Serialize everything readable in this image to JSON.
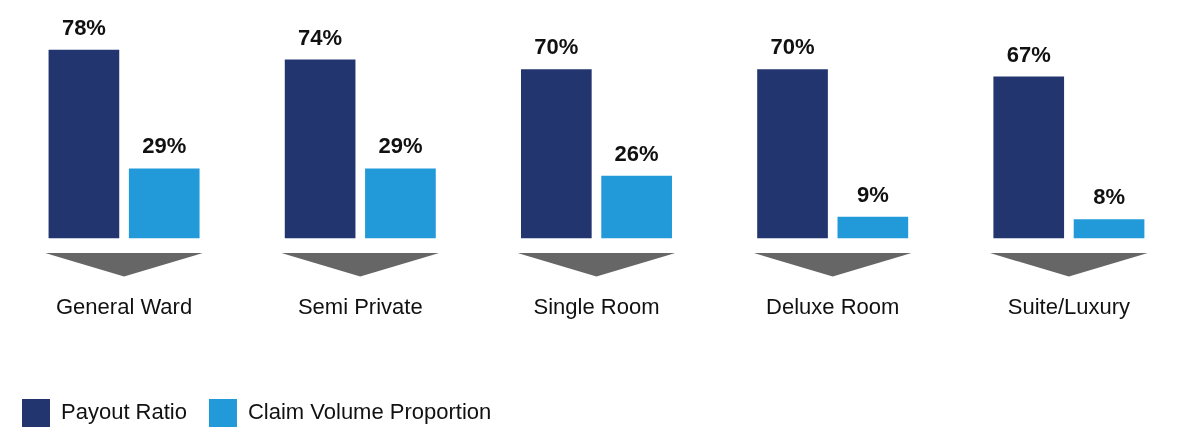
{
  "chart_data": {
    "type": "bar",
    "categories": [
      "General Ward",
      "Semi Private",
      "Single Room",
      "Deluxe Room",
      "Suite/Luxury"
    ],
    "series": [
      {
        "name": "Payout Ratio",
        "color": "#22356f",
        "values": [
          78,
          74,
          70,
          70,
          67
        ],
        "value_labels": [
          "78%",
          "74%",
          "70%",
          "70%",
          "67%"
        ]
      },
      {
        "name": "Claim Volume Proportion",
        "color": "#2299d8",
        "values": [
          29,
          29,
          26,
          9,
          8
        ],
        "value_labels": [
          "29%",
          "29%",
          "26%",
          "9%",
          "8%"
        ]
      }
    ],
    "grid": false,
    "legend": "bottom left"
  }
}
